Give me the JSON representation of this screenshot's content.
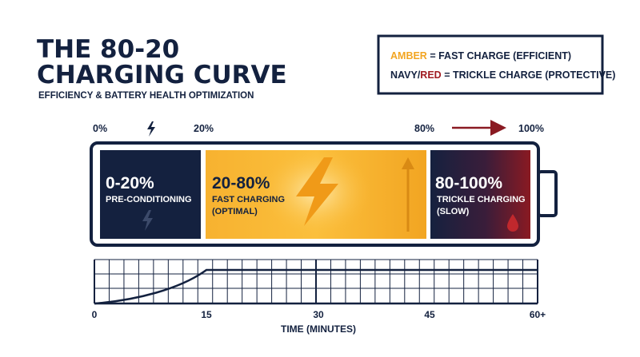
{
  "header": {
    "title_line1": "THE 80-20",
    "title_line2": "CHARGING CURVE",
    "subtitle": "EFFICIENCY & BATTERY HEALTH OPTIMIZATION"
  },
  "legend": {
    "items": [
      {
        "key": "AMBER",
        "text": "= FAST CHARGE (EFFICIENT)"
      },
      {
        "key": "NAVY",
        "joiner": "/",
        "key2": "RED",
        "text": "= TRICKLE CHARGE (PROTECTIVE)"
      }
    ]
  },
  "scale_labels": [
    "0%",
    "20%",
    "80%",
    "100%"
  ],
  "segments": [
    {
      "range": "0-20%",
      "label": "PRE-CONDITIONING"
    },
    {
      "range": "20-80%",
      "label": "FAST CHARGING",
      "note": "(OPTIMAL)"
    },
    {
      "range": "80-100%",
      "label": "TRICKLE CHARGING",
      "note": "(SLOW)"
    }
  ],
  "timeline": {
    "ticks": [
      "0",
      "15",
      "30",
      "45",
      "60+"
    ],
    "axis_label": "TIME (MINUTES)"
  }
}
